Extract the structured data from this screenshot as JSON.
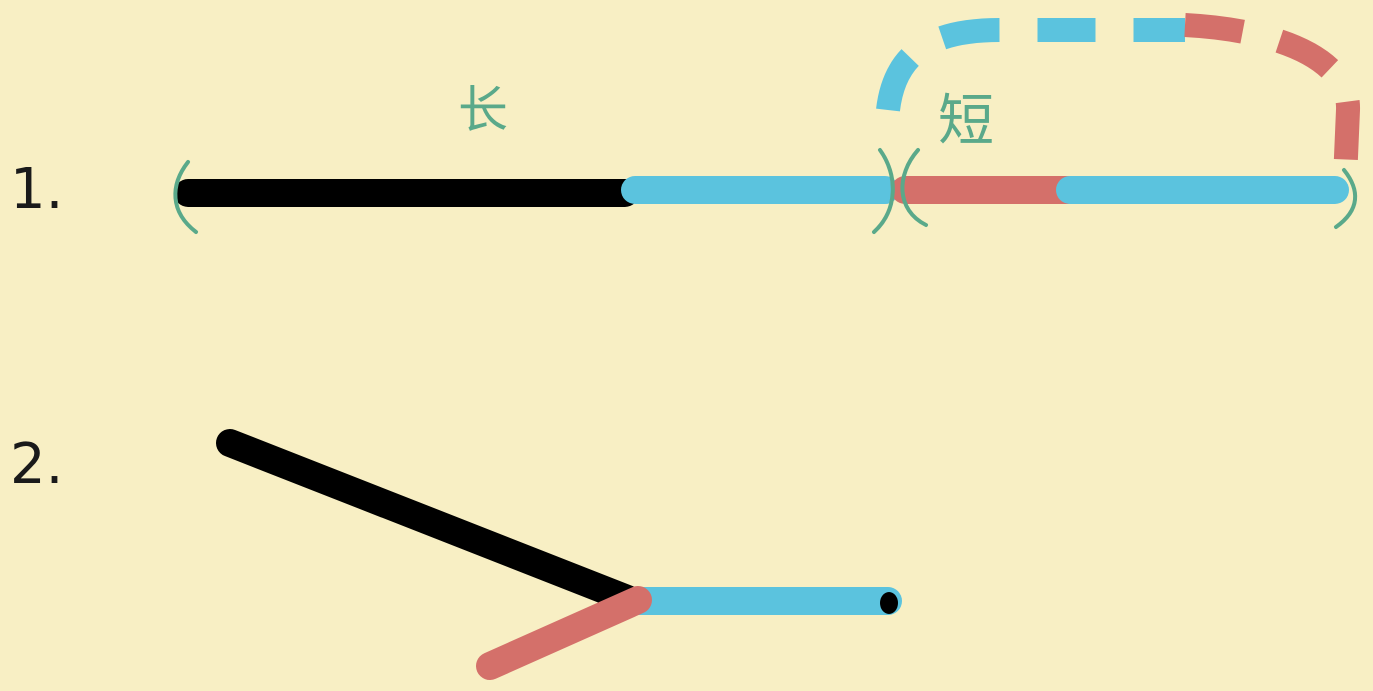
{
  "colors": {
    "background": "#f8efc4",
    "black_segment": "#000000",
    "blue_segment": "#5bc3de",
    "red_segment": "#d4706a",
    "bracket_green": "#5aa98a",
    "annotation_green": "#5aa98a",
    "step_label": "#1a1a1a"
  },
  "step1": {
    "number": "1.",
    "long_label": "长",
    "short_label": "短",
    "brackets": {
      "open_left": "(",
      "close_mid": ")",
      "open_mid": "(",
      "close_right": ")"
    }
  },
  "step2": {
    "number": "2."
  }
}
